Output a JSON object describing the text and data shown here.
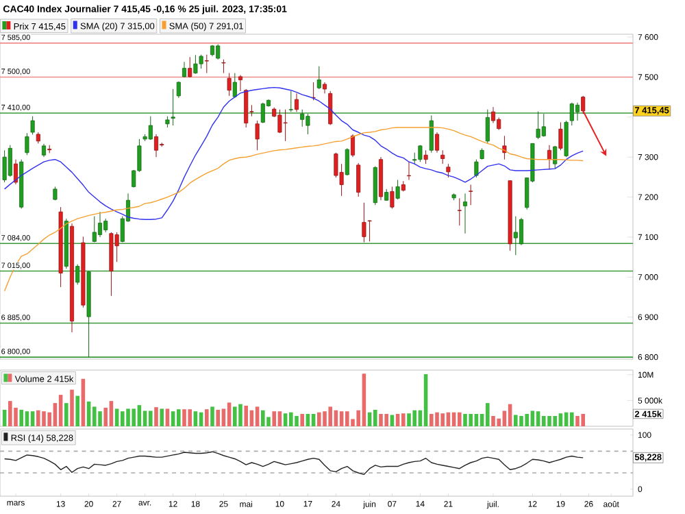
{
  "chart_data": [
    {
      "type": "candlestick",
      "title": "CAC40 Index Journalier 7 415,45 -0,16 % 25 juil. 2023, 17:35:01",
      "legend": "top",
      "tick_labels": "y",
      "categories": [
        null,
        null,
        null,
        null,
        null,
        null,
        null,
        null,
        null,
        null,
        null,
        null,
        null,
        null,
        null,
        null,
        null,
        null,
        null,
        null,
        null,
        null,
        null,
        null,
        null,
        null,
        null,
        null,
        null,
        null,
        null,
        null,
        null,
        null,
        null,
        null,
        null,
        null,
        null,
        null,
        null,
        null,
        null,
        null,
        null,
        null,
        null,
        null,
        null,
        null,
        null,
        null,
        null,
        null,
        null,
        null,
        null,
        null,
        null,
        null,
        null,
        null,
        null,
        null,
        null,
        null,
        null,
        null,
        null,
        null,
        null,
        null,
        null,
        null,
        null,
        null,
        null,
        null,
        null,
        null,
        null,
        null,
        null,
        null,
        null,
        null,
        null,
        null,
        null,
        null,
        null,
        null,
        null,
        null,
        null,
        null,
        null,
        null,
        null,
        null,
        null,
        null,
        null,
        null,
        null,
        null,
        null,
        null,
        null
      ],
      "ylim": [
        6795,
        7607
      ],
      "yticks": [
        {
          "value": 6800,
          "label": "6 800"
        },
        {
          "value": 6900,
          "label": "6 900"
        },
        {
          "value": 7000,
          "label": "7 000"
        },
        {
          "value": 7100,
          "label": "7 100"
        },
        {
          "value": 7200,
          "label": "7 200"
        },
        {
          "value": 7300,
          "label": "7 300"
        },
        {
          "value": 7400,
          "label": null
        },
        {
          "value": 7500,
          "label": "7 500"
        },
        {
          "value": 7600,
          "label": "7 600"
        }
      ],
      "ref_lines": [
        {
          "axis": "y",
          "value": 7585,
          "label": "7 585,00",
          "color": "#f08c8c"
        },
        {
          "axis": "y",
          "value": 7500,
          "label": "7 500,00",
          "color": "#f08c8c"
        },
        {
          "axis": "y",
          "value": 7410,
          "label": "7 410,00",
          "color": "#3a9a3a"
        },
        {
          "axis": "y",
          "value": 7084,
          "label": "7 084,00",
          "color": "#3a9a3a"
        },
        {
          "axis": "y",
          "value": 7015,
          "label": "7 015,00",
          "color": "#3a9a3a"
        },
        {
          "axis": "y",
          "value": 6885,
          "label": "6 885,00",
          "color": "#3a9a3a"
        },
        {
          "axis": "y",
          "value": 6800,
          "label": "6 800,00",
          "color": "#3a9a3a"
        }
      ],
      "annotations": [
        "7 415,45"
      ],
      "series": [
        {
          "name": "Prix 7 415,45",
          "type": "candlestick",
          "ohlc": [
            [
              7243,
              7317,
              7237,
              7300
            ],
            [
              7254,
              7330,
              7251,
              7322
            ],
            [
              7283,
              7294,
              7232,
              7237
            ],
            [
              7175,
              7294,
              7171,
              7288
            ],
            [
              7311,
              7360,
              7305,
              7351
            ],
            [
              7362,
              7402,
              7356,
              7391
            ],
            [
              7357,
              7362,
              7334,
              7340
            ],
            [
              7305,
              7333,
              7300,
              7328
            ],
            [
              7320,
              7330,
              7310,
              7318
            ],
            [
              7194,
              7226,
              7192,
              7220
            ],
            [
              7163,
              7175,
              6975,
              7010
            ],
            [
              7027,
              7146,
              7021,
              7140
            ],
            [
              7127,
              7134,
              6862,
              6890
            ],
            [
              6987,
              7032,
              6981,
              7027
            ],
            [
              7086,
              7101,
              6924,
              6930
            ],
            [
              6901,
              7015,
              6800,
              7013
            ],
            [
              7089,
              7152,
              7087,
              7112
            ],
            [
              7106,
              7163,
              7100,
              7135
            ],
            [
              7118,
              7146,
              7112,
              7140
            ],
            [
              7109,
              7112,
              6953,
              7015
            ],
            [
              7106,
              7112,
              7038,
              7078
            ],
            [
              7089,
              7152,
              7087,
              7146
            ],
            [
              7140,
              7209,
              7138,
              7192
            ],
            [
              7226,
              7268,
              7224,
              7266
            ],
            [
              7266,
              7345,
              7263,
              7328
            ],
            [
              7345,
              7357,
              7340,
              7351
            ],
            [
              7345,
              7402,
              7343,
              7379
            ],
            [
              7351,
              7357,
              7300,
              7317
            ],
            [
              7332,
              7336,
              7326,
              7330
            ],
            [
              7383,
              7402,
              7374,
              7393
            ],
            [
              7397,
              7470,
              7379,
              7400
            ],
            [
              7453,
              7489,
              7448,
              7487
            ],
            [
              7501,
              7538,
              7499,
              7522
            ],
            [
              7522,
              7550,
              7499,
              7501
            ],
            [
              7510,
              7555,
              7508,
              7533
            ],
            [
              7533,
              7556,
              7521,
              7552
            ],
            [
              7541,
              7556,
              7510,
              7540
            ],
            [
              7556,
              7580,
              7552,
              7578
            ],
            [
              7547,
              7582,
              7544,
              7578
            ],
            [
              7536,
              7544,
              7510,
              7535
            ],
            [
              7497,
              7510,
              7453,
              7467
            ],
            [
              7451,
              7510,
              7448,
              7487
            ],
            [
              7501,
              7505,
              7465,
              7493
            ],
            [
              7467,
              7470,
              7374,
              7385
            ],
            [
              7414,
              7430,
              7402,
              7413
            ],
            [
              7383,
              7391,
              7317,
              7345
            ],
            [
              7387,
              7436,
              7385,
              7433
            ],
            [
              7428,
              7444,
              7426,
              7442
            ],
            [
              7420,
              7424,
              7400,
              7402
            ],
            [
              7405,
              7419,
              7360,
              7362
            ],
            [
              7386,
              7419,
              7340,
              7385
            ],
            [
              7418,
              7465,
              7413,
              7419
            ],
            [
              7444,
              7459,
              7413,
              7419
            ],
            [
              7394,
              7419,
              7376,
              7408
            ],
            [
              7379,
              7408,
              7357,
              7402
            ],
            [
              7449,
              7487,
              7442,
              7448
            ],
            [
              7473,
              7527,
              7470,
              7493
            ],
            [
              7482,
              7487,
              7459,
              7470
            ],
            [
              7459,
              7465,
              7380,
              7383
            ],
            [
              7308,
              7311,
              7249,
              7254
            ],
            [
              7262,
              7283,
              7203,
              7231
            ],
            [
              7256,
              7322,
              7254,
              7319
            ],
            [
              7353,
              7357,
              7300,
              7305
            ],
            [
              7280,
              7285,
              7201,
              7212
            ],
            [
              7137,
              7186,
              7087,
              7101
            ],
            [
              7141,
              7142,
              7089,
              7140
            ],
            [
              7186,
              7277,
              7180,
              7274
            ],
            [
              7294,
              7300,
              7192,
              7201
            ],
            [
              7192,
              7220,
              7191,
              7212
            ],
            [
              7214,
              7226,
              7171,
              7175
            ],
            [
              7197,
              7243,
              7194,
              7226
            ],
            [
              7231,
              7240,
              7214,
              7217
            ],
            [
              7254,
              7288,
              7243,
              7253
            ],
            [
              7292,
              7311,
              7283,
              7294
            ],
            [
              7294,
              7330,
              7288,
              7328
            ],
            [
              7305,
              7317,
              7283,
              7294
            ],
            [
              7317,
              7404,
              7311,
              7391
            ],
            [
              7357,
              7362,
              7311,
              7317
            ],
            [
              7305,
              7317,
              7283,
              7296
            ],
            [
              7275,
              7283,
              7249,
              7263
            ],
            [
              7198,
              7209,
              7192,
              7206
            ],
            [
              7167,
              7197,
              7129,
              7166
            ],
            [
              7178,
              7209,
              7109,
              7188
            ],
            [
              7215,
              7231,
              7180,
              7214
            ],
            [
              7254,
              7294,
              7249,
              7288
            ],
            [
              7296,
              7322,
              7294,
              7317
            ],
            [
              7340,
              7419,
              7334,
              7399
            ],
            [
              7413,
              7425,
              7385,
              7391
            ],
            [
              7394,
              7399,
              7368,
              7371
            ],
            [
              7328,
              7353,
              7294,
              7311
            ],
            [
              7241,
              7241,
              7066,
              7083
            ],
            [
              7098,
              7152,
              7055,
              7112
            ],
            [
              7083,
              7148,
              7080,
              7144
            ],
            [
              7174,
              7249,
              7169,
              7248
            ],
            [
              7240,
              7334,
              7237,
              7334
            ],
            [
              7349,
              7414,
              7345,
              7370
            ],
            [
              7353,
              7408,
              7351,
              7376
            ],
            [
              7317,
              7330,
              7269,
              7294
            ],
            [
              7283,
              7328,
              7271,
              7326
            ],
            [
              7370,
              7387,
              7317,
              7322
            ],
            [
              7303,
              7391,
              7300,
              7387
            ],
            [
              7391,
              7436,
              7379,
              7433
            ],
            [
              7413,
              7436,
              7391,
              7430
            ],
            [
              7450,
              7453,
              7408,
              7415.45
            ],
            null,
            null,
            null,
            null,
            null
          ],
          "colors": [
            "#1f9e1f",
            "#1f9e1f",
            "#e02020",
            "#1f9e1f",
            "#1f9e1f",
            "#1f9e1f",
            "#e02020",
            "#1f9e1f",
            "#e02020",
            "#1f9e1f",
            "#e02020",
            "#1f9e1f",
            "#e02020",
            "#1f9e1f",
            "#e02020",
            "#1f9e1f",
            "#1f9e1f",
            "#1f9e1f",
            "#1f9e1f",
            "#e02020",
            "#e02020",
            "#1f9e1f",
            "#1f9e1f",
            "#1f9e1f",
            "#1f9e1f",
            "#1f9e1f",
            "#1f9e1f",
            "#e02020",
            "#e02020",
            "#1f9e1f",
            "#1f9e1f",
            "#1f9e1f",
            "#1f9e1f",
            "#e02020",
            "#1f9e1f",
            "#1f9e1f",
            "#e02020",
            "#1f9e1f",
            "#1f9e1f",
            "#e02020",
            "#e02020",
            "#1f9e1f",
            "#e02020",
            "#e02020",
            "#e02020",
            "#e02020",
            "#1f9e1f",
            "#1f9e1f",
            "#e02020",
            "#e02020",
            "#e02020",
            "#1f9e1f",
            "#e02020",
            "#1f9e1f",
            "#1f9e1f",
            "#e02020",
            "#1f9e1f",
            "#e02020",
            "#e02020",
            "#e02020",
            "#e02020",
            "#1f9e1f",
            "#e02020",
            "#e02020",
            "#e02020",
            "#e02020",
            "#1f9e1f",
            "#e02020",
            "#1f9e1f",
            "#e02020",
            "#1f9e1f",
            "#e02020",
            "#e02020",
            "#1f9e1f",
            "#1f9e1f",
            "#e02020",
            "#1f9e1f",
            "#e02020",
            "#e02020",
            "#e02020",
            "#1f9e1f",
            "#e02020",
            "#1f9e1f",
            "#e02020",
            "#1f9e1f",
            "#1f9e1f",
            "#1f9e1f",
            "#e02020",
            "#e02020",
            "#e02020",
            "#e02020",
            "#1f9e1f",
            "#1f9e1f",
            "#1f9e1f",
            "#1f9e1f",
            "#1f9e1f",
            "#1f9e1f",
            "#e02020",
            "#1f9e1f",
            "#e02020",
            "#1f9e1f",
            "#1f9e1f",
            "#1f9e1f",
            "#e02020",
            null,
            null,
            null,
            null,
            null
          ]
        },
        {
          "name": "SMA (20) 7 315,00",
          "type": "line",
          "color": "#3030f0",
          "values": [
            7220,
            7232,
            7243,
            7254,
            7263,
            7272,
            7280,
            7288,
            7292,
            7294,
            7288,
            7275,
            7262,
            7246,
            7230,
            7212,
            7200,
            7188,
            7178,
            7170,
            7163,
            7157,
            7150,
            7147,
            7145,
            7144,
            7144,
            7145,
            7148,
            7168,
            7190,
            7218,
            7250,
            7278,
            7305,
            7328,
            7352,
            7380,
            7400,
            7425,
            7440,
            7450,
            7460,
            7464,
            7467,
            7469,
            7471,
            7473,
            7474,
            7473,
            7470,
            7467,
            7462,
            7456,
            7452,
            7447,
            7440,
            7430,
            7420,
            7405,
            7391,
            7382,
            7368,
            7362,
            7355,
            7351,
            7342,
            7328,
            7320,
            7310,
            7302,
            7298,
            7288,
            7283,
            7275,
            7271,
            7268,
            7263,
            7260,
            7254,
            7250,
            7244,
            7237,
            7245,
            7255,
            7266,
            7277,
            7280,
            7283,
            7278,
            7268,
            7266,
            7266,
            7266,
            7267,
            7268,
            7269,
            7270,
            7271,
            7280,
            7294,
            7303,
            7310,
            7315,
            null,
            null,
            null,
            null,
            null
          ]
        },
        {
          "name": "SMA (50) 7 291,01",
          "type": "line",
          "color": "#f5a030",
          "values": [
            6965,
            7000,
            7030,
            7052,
            7058,
            7070,
            7082,
            7095,
            7105,
            7112,
            7122,
            7133,
            7140,
            7146,
            7150,
            7154,
            7157,
            7160,
            7162,
            7165,
            7168,
            7169,
            7172,
            7174,
            7177,
            7184,
            7186,
            7190,
            7195,
            7200,
            7206,
            7212,
            7222,
            7235,
            7244,
            7252,
            7260,
            7266,
            7272,
            7283,
            7292,
            7296,
            7299,
            7300,
            7303,
            7307,
            7310,
            7313,
            7316,
            7318,
            7319,
            7321,
            7323,
            7325,
            7327,
            7328,
            7330,
            7333,
            7336,
            7339,
            7340,
            7345,
            7351,
            7356,
            7361,
            7362,
            7364,
            7368,
            7370,
            7373,
            7374,
            7374,
            7374,
            7374,
            7374,
            7374,
            7374,
            7374,
            7373,
            7370,
            7366,
            7360,
            7355,
            7351,
            7345,
            7339,
            7334,
            7330,
            7322,
            7317,
            7308,
            7305,
            7300,
            7296,
            7295,
            7294,
            7294,
            7294,
            7294,
            7294,
            7293,
            7292,
            7292,
            7291,
            null,
            null,
            null,
            null,
            null
          ]
        }
      ]
    },
    {
      "type": "bar",
      "legend": "top left",
      "tick_labels": "y",
      "categories": [
        null,
        null,
        null,
        null,
        null,
        null,
        null,
        null,
        null,
        null,
        null,
        null,
        null,
        null,
        null,
        null,
        null,
        null,
        null,
        null,
        null,
        null,
        null,
        null,
        null,
        null,
        null,
        null,
        null,
        null,
        null,
        null,
        null,
        null,
        null,
        null,
        null,
        null,
        null,
        null,
        null,
        null,
        null,
        null,
        null,
        null,
        null,
        null,
        null,
        null,
        null,
        null,
        null,
        null,
        null,
        null,
        null,
        null,
        null,
        null,
        null,
        null,
        null,
        null,
        null,
        null,
        null,
        null,
        null,
        null,
        null,
        null,
        null,
        null,
        null,
        null,
        null,
        null,
        null,
        null,
        null,
        null,
        null,
        null,
        null,
        null,
        null,
        null,
        null,
        null,
        null,
        null,
        null,
        null,
        null,
        null,
        null,
        null,
        null,
        null,
        null,
        null,
        null,
        null,
        null,
        null,
        null,
        null,
        null
      ],
      "ylim": [
        0,
        10900000
      ],
      "yticks": [
        {
          "value": 5000000,
          "label": "5 000k"
        },
        {
          "value": 10000000,
          "label": "10M"
        }
      ],
      "annotations": [
        "2 415k"
      ],
      "series": [
        {
          "name": "Volume 2 415k",
          "values": [
            3200000,
            4900000,
            3600000,
            3200000,
            2900000,
            2900000,
            3100000,
            2900000,
            2700000,
            4500000,
            6100000,
            4500000,
            7100000,
            5900000,
            9200000,
            4800000,
            3800000,
            2900000,
            3600000,
            4900000,
            3400000,
            2900000,
            3400000,
            3400000,
            4100000,
            3000000,
            3000000,
            3700000,
            3400000,
            3400000,
            2900000,
            3300000,
            3300000,
            3300000,
            2900000,
            2700000,
            3300000,
            3800000,
            3200000,
            3400000,
            4600000,
            3800000,
            4300000,
            4000000,
            3100000,
            3800000,
            3100000,
            1800000,
            2900000,
            2900000,
            2500000,
            2700000,
            2000000,
            2400000,
            2400000,
            2400000,
            2700000,
            2900000,
            3800000,
            3100000,
            2900000,
            2900000,
            1400000,
            3100000,
            10200000,
            2700000,
            3200000,
            2400000,
            2400000,
            2200000,
            2400000,
            2500000,
            2500000,
            3100000,
            3100000,
            10100000,
            2400000,
            2700000,
            2500000,
            2700000,
            2700000,
            2700000,
            2400000,
            2400000,
            2400000,
            2400000,
            4500000,
            2000000,
            1500000,
            3000000,
            4300000,
            2200000,
            2000000,
            2400000,
            3000000,
            2900000,
            2000000,
            2000000,
            2000000,
            2500000,
            2700000,
            2700000,
            2000000,
            2400000,
            null,
            null,
            null,
            null,
            null
          ],
          "colors": [
            "#44c044",
            "#e86a6a",
            "#e86a6a",
            "#44c044",
            "#44c044",
            "#44c044",
            "#e86a6a",
            "#e86a6a",
            "#e86a6a",
            "#e86a6a",
            "#e86a6a",
            "#44c044",
            "#e86a6a",
            "#44c044",
            "#e86a6a",
            "#44c044",
            "#44c044",
            "#44c044",
            "#e86a6a",
            "#e86a6a",
            "#44c044",
            "#44c044",
            "#44c044",
            "#44c044",
            "#44c044",
            "#44c044",
            "#44c044",
            "#e86a6a",
            "#44c044",
            "#e86a6a",
            "#44c044",
            "#44c044",
            "#e86a6a",
            "#e86a6a",
            "#44c044",
            "#44c044",
            "#e86a6a",
            "#44c044",
            "#e86a6a",
            "#e86a6a",
            "#e86a6a",
            "#44c044",
            "#44c044",
            "#e86a6a",
            "#e86a6a",
            "#e86a6a",
            "#44c044",
            "#44c044",
            "#e86a6a",
            "#e86a6a",
            "#44c044",
            "#44c044",
            "#44c044",
            "#e86a6a",
            "#44c044",
            "#44c044",
            "#e86a6a",
            "#e86a6a",
            "#e86a6a",
            "#e86a6a",
            "#e86a6a",
            "#e86a6a",
            "#e86a6a",
            "#e86a6a",
            "#e86a6a",
            "#44c044",
            "#44c044",
            "#e86a6a",
            "#e86a6a",
            "#44c044",
            "#e86a6a",
            "#e86a6a",
            "#44c044",
            "#44c044",
            "#44c044",
            "#44c044",
            "#e86a6a",
            "#e86a6a",
            "#e86a6a",
            "#e86a6a",
            "#e86a6a",
            "#e86a6a",
            "#44c044",
            "#44c044",
            "#44c044",
            "#44c044",
            "#44c044",
            "#e86a6a",
            "#e86a6a",
            "#e86a6a",
            "#e86a6a",
            "#44c044",
            "#44c044",
            "#44c044",
            "#44c044",
            "#44c044",
            "#44c044",
            "#44c044",
            "#44c044",
            "#44c044",
            "#44c044",
            "#44c044",
            "#e86a6a",
            "#e86a6a",
            null,
            null,
            null,
            null,
            null
          ]
        }
      ]
    },
    {
      "type": "line",
      "legend": "top left",
      "categories": [
        null,
        null,
        "mars",
        null,
        null,
        null,
        null,
        null,
        null,
        null,
        "13",
        null,
        null,
        null,
        null,
        "20",
        null,
        null,
        null,
        null,
        "27",
        null,
        null,
        null,
        null,
        "avr.",
        null,
        null,
        null,
        null,
        "12",
        null,
        null,
        null,
        "18",
        null,
        null,
        null,
        null,
        "25",
        null,
        null,
        null,
        "mai",
        null,
        null,
        null,
        null,
        null,
        "10",
        null,
        null,
        null,
        null,
        "17",
        null,
        null,
        null,
        null,
        "24",
        null,
        null,
        null,
        null,
        null,
        "juin",
        null,
        null,
        null,
        "07",
        null,
        null,
        null,
        null,
        "14",
        null,
        null,
        null,
        null,
        "21",
        null,
        null,
        null,
        null,
        null,
        null,
        null,
        "juil.",
        null,
        null,
        null,
        null,
        null,
        null,
        "12",
        null,
        null,
        null,
        null,
        "19",
        null,
        null,
        null,
        null,
        "26",
        null,
        null,
        null,
        "août"
      ],
      "ylim": [
        -13,
        111
      ],
      "yticks": [
        0,
        100
      ],
      "ref_lines": [
        {
          "axis": "y",
          "value": 70,
          "color": "#aaaaaa",
          "line_style": "dashed"
        },
        {
          "axis": "y",
          "value": 30,
          "color": "#aaaaaa",
          "line_style": "dashed"
        }
      ],
      "annotations": [
        "58,228"
      ],
      "series": [
        {
          "name": "RSI (14) 58,228",
          "color": "#222222",
          "values": [
            56,
            55,
            53,
            58,
            63,
            62,
            60,
            57,
            52,
            46,
            36,
            42,
            31,
            38,
            41,
            38,
            46,
            45,
            44,
            47,
            51,
            53,
            57,
            59,
            61,
            61,
            60,
            59,
            59,
            61,
            63,
            65,
            68,
            67,
            66,
            66,
            67,
            69,
            66,
            62,
            59,
            56,
            51,
            45,
            49,
            46,
            42,
            46,
            51,
            48,
            45,
            47,
            49,
            52,
            55,
            57,
            55,
            44,
            34,
            32,
            38,
            42,
            34,
            30,
            27,
            38,
            44,
            41,
            42,
            42,
            42,
            46,
            49,
            51,
            52,
            57,
            49,
            46,
            44,
            42,
            40,
            38,
            44,
            49,
            52,
            57,
            59,
            57,
            55,
            45,
            36,
            38,
            42,
            48,
            55,
            54,
            52,
            49,
            52,
            55,
            59,
            61,
            59,
            58,
            null,
            null,
            null,
            null,
            null
          ]
        }
      ]
    }
  ]
}
